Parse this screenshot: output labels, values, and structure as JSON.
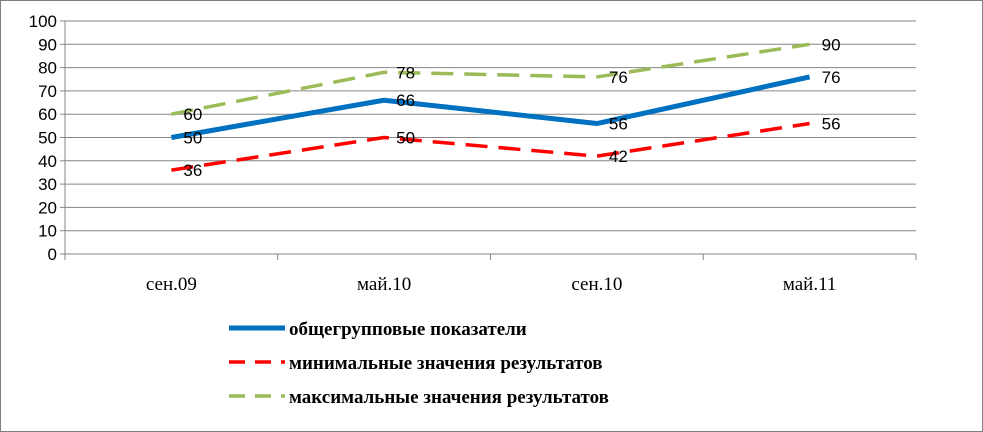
{
  "chart_data": {
    "type": "line",
    "categories": [
      "сен.09",
      "май.10",
      "сен.10",
      "май.11"
    ],
    "series": [
      {
        "name": "общегрупповые показатели",
        "values": [
          50,
          66,
          56,
          76
        ],
        "color": "#0070c0",
        "style": "solid"
      },
      {
        "name": "минимальные значения результатов",
        "values": [
          36,
          50,
          42,
          56
        ],
        "color": "#ff0000",
        "style": "dashed"
      },
      {
        "name": "максимальные значения результатов",
        "values": [
          60,
          78,
          76,
          90
        ],
        "color": "#9bbb59",
        "style": "dashed"
      }
    ],
    "ylim": [
      0,
      100
    ],
    "yticks": [
      0,
      10,
      20,
      30,
      40,
      50,
      60,
      70,
      80,
      90,
      100
    ],
    "grid": true,
    "legend": "bottom",
    "data_labels": true
  }
}
